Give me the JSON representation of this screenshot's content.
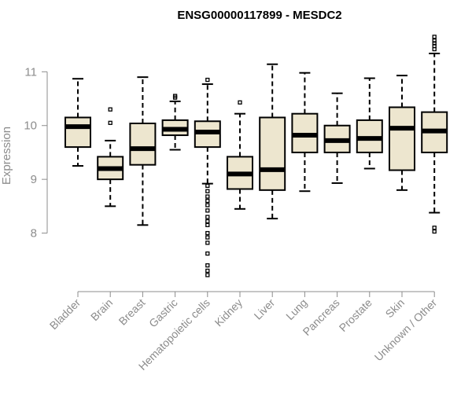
{
  "chart_data": {
    "type": "boxplot",
    "title": "ENSG00000117899 - MESDC2",
    "xlabel": "",
    "ylabel": "Expression",
    "ylim": [
      7.0,
      11.75
    ],
    "yticks": [
      8,
      9,
      10,
      11
    ],
    "grid": false,
    "colors": {
      "box_fill": "#ede6cf",
      "box_stroke": "#000000",
      "axis": "#8c8c8c",
      "text": "#8c8c8c"
    },
    "categories": [
      "Bladder",
      "Brain",
      "Breast",
      "Gastric",
      "Hematopoietic cells",
      "Kidney",
      "Liver",
      "Lung",
      "Pancreas",
      "Prostate",
      "Skin",
      "Unknown / Other"
    ],
    "boxes": [
      {
        "category": "Bladder",
        "whisker_low": 9.25,
        "q1": 9.6,
        "median": 9.98,
        "q3": 10.15,
        "whisker_high": 10.87,
        "outliers": []
      },
      {
        "category": "Brain",
        "whisker_low": 8.5,
        "q1": 9.0,
        "median": 9.2,
        "q3": 9.42,
        "whisker_high": 9.72,
        "outliers": [
          10.05,
          10.3
        ]
      },
      {
        "category": "Breast",
        "whisker_low": 8.15,
        "q1": 9.27,
        "median": 9.57,
        "q3": 10.04,
        "whisker_high": 10.9,
        "outliers": []
      },
      {
        "category": "Gastric",
        "whisker_low": 9.55,
        "q1": 9.82,
        "median": 9.93,
        "q3": 10.1,
        "whisker_high": 10.45,
        "outliers": [
          10.52,
          10.55
        ]
      },
      {
        "category": "Hematopoietic cells",
        "whisker_low": 8.92,
        "q1": 9.6,
        "median": 9.88,
        "q3": 10.08,
        "whisker_high": 10.77,
        "outliers": [
          10.85,
          8.88,
          8.78,
          8.68,
          8.6,
          8.52,
          8.42,
          8.3,
          8.22,
          8.15,
          8.0,
          7.92,
          7.82,
          7.62,
          7.4,
          7.3,
          7.22
        ]
      },
      {
        "category": "Kidney",
        "whisker_low": 8.45,
        "q1": 8.82,
        "median": 9.1,
        "q3": 9.42,
        "whisker_high": 10.22,
        "outliers": [
          10.43
        ]
      },
      {
        "category": "Liver",
        "whisker_low": 8.27,
        "q1": 8.8,
        "median": 9.18,
        "q3": 10.15,
        "whisker_high": 11.14,
        "outliers": []
      },
      {
        "category": "Lung",
        "whisker_low": 8.78,
        "q1": 9.5,
        "median": 9.82,
        "q3": 10.22,
        "whisker_high": 10.98,
        "outliers": []
      },
      {
        "category": "Pancreas",
        "whisker_low": 8.93,
        "q1": 9.5,
        "median": 9.72,
        "q3": 10.0,
        "whisker_high": 10.6,
        "outliers": []
      },
      {
        "category": "Prostate",
        "whisker_low": 9.2,
        "q1": 9.5,
        "median": 9.76,
        "q3": 10.1,
        "whisker_high": 10.88,
        "outliers": []
      },
      {
        "category": "Skin",
        "whisker_low": 8.8,
        "q1": 9.17,
        "median": 9.95,
        "q3": 10.34,
        "whisker_high": 10.93,
        "outliers": []
      },
      {
        "category": "Unknown / Other",
        "whisker_low": 8.38,
        "q1": 9.5,
        "median": 9.9,
        "q3": 10.25,
        "whisker_high": 11.34,
        "outliers": [
          11.42,
          11.48,
          11.53,
          11.58,
          11.65,
          8.1,
          8.03
        ]
      }
    ]
  }
}
